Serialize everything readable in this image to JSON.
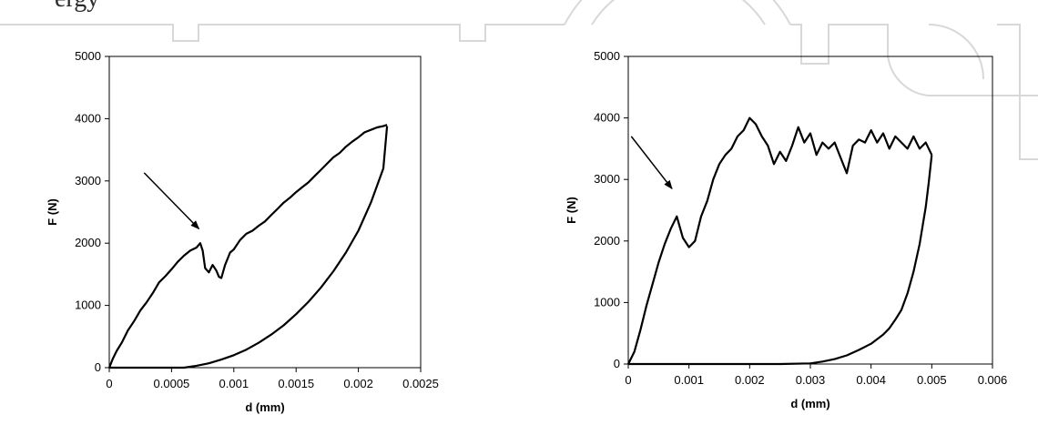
{
  "page": {
    "top_text": "ergy"
  },
  "chart_data": [
    {
      "type": "line",
      "xlabel": "d (mm)",
      "ylabel": "F (N)",
      "xlim": [
        0,
        0.0025
      ],
      "ylim": [
        0,
        5000
      ],
      "x_ticks": [
        0,
        0.0005,
        0.001,
        0.0015,
        0.002,
        0.0025
      ],
      "x_tick_labels": [
        "0",
        "0.0005",
        "0.001",
        "0.0015",
        "0.002",
        "0.0025"
      ],
      "y_ticks": [
        0,
        1000,
        2000,
        3000,
        4000,
        5000
      ],
      "y_tick_labels": [
        "0",
        "1000",
        "2000",
        "3000",
        "4000",
        "5000"
      ],
      "grid": false,
      "legend": "none",
      "series": [
        {
          "points": [
            [
              0,
              0
            ],
            [
              3e-05,
              150
            ],
            [
              6e-05,
              270
            ],
            [
              0.0001,
              400
            ],
            [
              0.00015,
              600
            ],
            [
              0.0002,
              750
            ],
            [
              0.00025,
              920
            ],
            [
              0.0003,
              1050
            ],
            [
              0.00035,
              1200
            ],
            [
              0.0004,
              1370
            ],
            [
              0.00045,
              1470
            ],
            [
              0.0005,
              1580
            ],
            [
              0.00055,
              1700
            ],
            [
              0.0006,
              1800
            ],
            [
              0.00065,
              1880
            ],
            [
              0.0007,
              1930
            ],
            [
              0.00073,
              2000
            ],
            [
              0.00075,
              1880
            ],
            [
              0.00077,
              1600
            ],
            [
              0.0008,
              1530
            ],
            [
              0.00083,
              1650
            ],
            [
              0.00086,
              1560
            ],
            [
              0.00088,
              1460
            ],
            [
              0.0009,
              1440
            ],
            [
              0.00093,
              1650
            ],
            [
              0.00097,
              1850
            ],
            [
              0.001,
              1900
            ],
            [
              0.00105,
              2050
            ],
            [
              0.0011,
              2150
            ],
            [
              0.00115,
              2200
            ],
            [
              0.0012,
              2280
            ],
            [
              0.00125,
              2350
            ],
            [
              0.0013,
              2450
            ],
            [
              0.00135,
              2550
            ],
            [
              0.0014,
              2650
            ],
            [
              0.00145,
              2730
            ],
            [
              0.0015,
              2820
            ],
            [
              0.00155,
              2900
            ],
            [
              0.0016,
              2980
            ],
            [
              0.00165,
              3080
            ],
            [
              0.0017,
              3180
            ],
            [
              0.00175,
              3280
            ],
            [
              0.0018,
              3380
            ],
            [
              0.00185,
              3450
            ],
            [
              0.0019,
              3550
            ],
            [
              0.00195,
              3630
            ],
            [
              0.002,
              3700
            ],
            [
              0.00205,
              3780
            ],
            [
              0.0021,
              3820
            ],
            [
              0.00215,
              3860
            ],
            [
              0.0022,
              3880
            ],
            [
              0.00223,
              3900
            ]
          ]
        },
        {
          "points": [
            [
              0,
              0
            ],
            [
              0.0001,
              0
            ],
            [
              0.0003,
              0
            ],
            [
              0.0005,
              0
            ],
            [
              0.0006,
              0
            ],
            [
              0.0007,
              30
            ],
            [
              0.0008,
              70
            ],
            [
              0.0009,
              130
            ],
            [
              0.001,
              200
            ],
            [
              0.0011,
              290
            ],
            [
              0.0012,
              400
            ],
            [
              0.0013,
              530
            ],
            [
              0.0014,
              680
            ],
            [
              0.0015,
              860
            ],
            [
              0.0016,
              1060
            ],
            [
              0.0017,
              1290
            ],
            [
              0.0018,
              1550
            ],
            [
              0.0019,
              1850
            ],
            [
              0.002,
              2200
            ],
            [
              0.0021,
              2650
            ],
            [
              0.0022,
              3200
            ],
            [
              0.00223,
              3880
            ]
          ]
        }
      ],
      "annotations": [
        {
          "type": "arrow",
          "from": [
            0.00028,
            3130
          ],
          "to": [
            0.00072,
            2230
          ]
        }
      ]
    },
    {
      "type": "line",
      "xlabel": "d (mm)",
      "ylabel": "F (N)",
      "xlim": [
        0,
        0.006
      ],
      "ylim": [
        0,
        5000
      ],
      "x_ticks": [
        0,
        0.001,
        0.002,
        0.003,
        0.004,
        0.005,
        0.006
      ],
      "x_tick_labels": [
        "0",
        "0.001",
        "0.002",
        "0.003",
        "0.004",
        "0.005",
        "0.006"
      ],
      "y_ticks": [
        0,
        1000,
        2000,
        3000,
        4000,
        5000
      ],
      "y_tick_labels": [
        "0",
        "1000",
        "2000",
        "3000",
        "4000",
        "5000"
      ],
      "grid": false,
      "legend": "none",
      "series": [
        {
          "points": [
            [
              0,
              0
            ],
            [
              0.0001,
              200
            ],
            [
              0.0002,
              550
            ],
            [
              0.0003,
              950
            ],
            [
              0.0004,
              1300
            ],
            [
              0.0005,
              1650
            ],
            [
              0.0006,
              1950
            ],
            [
              0.0007,
              2200
            ],
            [
              0.0008,
              2400
            ],
            [
              0.0009,
              2050
            ],
            [
              0.001,
              1900
            ],
            [
              0.0011,
              2000
            ],
            [
              0.0012,
              2400
            ],
            [
              0.0013,
              2650
            ],
            [
              0.0014,
              3000
            ],
            [
              0.0015,
              3250
            ],
            [
              0.0016,
              3400
            ],
            [
              0.0017,
              3500
            ],
            [
              0.0018,
              3700
            ],
            [
              0.0019,
              3800
            ],
            [
              0.002,
              4000
            ],
            [
              0.0021,
              3900
            ],
            [
              0.0022,
              3700
            ],
            [
              0.0023,
              3550
            ],
            [
              0.0024,
              3250
            ],
            [
              0.0025,
              3450
            ],
            [
              0.0026,
              3300
            ],
            [
              0.0027,
              3550
            ],
            [
              0.0028,
              3850
            ],
            [
              0.0029,
              3600
            ],
            [
              0.003,
              3750
            ],
            [
              0.0031,
              3400
            ],
            [
              0.0032,
              3600
            ],
            [
              0.0033,
              3500
            ],
            [
              0.0034,
              3600
            ],
            [
              0.0035,
              3350
            ],
            [
              0.0036,
              3100
            ],
            [
              0.0037,
              3550
            ],
            [
              0.0038,
              3650
            ],
            [
              0.0039,
              3600
            ],
            [
              0.004,
              3800
            ],
            [
              0.0041,
              3600
            ],
            [
              0.0042,
              3750
            ],
            [
              0.0043,
              3500
            ],
            [
              0.0044,
              3700
            ],
            [
              0.0045,
              3600
            ],
            [
              0.0046,
              3500
            ],
            [
              0.0047,
              3700
            ],
            [
              0.0048,
              3500
            ],
            [
              0.0049,
              3600
            ],
            [
              0.005,
              3400
            ]
          ]
        },
        {
          "points": [
            [
              0,
              0
            ],
            [
              0.0005,
              0
            ],
            [
              0.001,
              0
            ],
            [
              0.0015,
              0
            ],
            [
              0.002,
              0
            ],
            [
              0.0025,
              0
            ],
            [
              0.003,
              10
            ],
            [
              0.0032,
              40
            ],
            [
              0.0034,
              80
            ],
            [
              0.0036,
              140
            ],
            [
              0.0038,
              230
            ],
            [
              0.004,
              330
            ],
            [
              0.0042,
              480
            ],
            [
              0.0043,
              580
            ],
            [
              0.0044,
              720
            ],
            [
              0.0045,
              880
            ],
            [
              0.0046,
              1150
            ],
            [
              0.0047,
              1500
            ],
            [
              0.0048,
              1950
            ],
            [
              0.0049,
              2550
            ],
            [
              0.00495,
              2950
            ],
            [
              0.005,
              3400
            ]
          ]
        }
      ],
      "annotations": [
        {
          "type": "arrow",
          "from": [
            5e-05,
            3700
          ],
          "to": [
            0.00072,
            2850
          ]
        }
      ]
    }
  ]
}
